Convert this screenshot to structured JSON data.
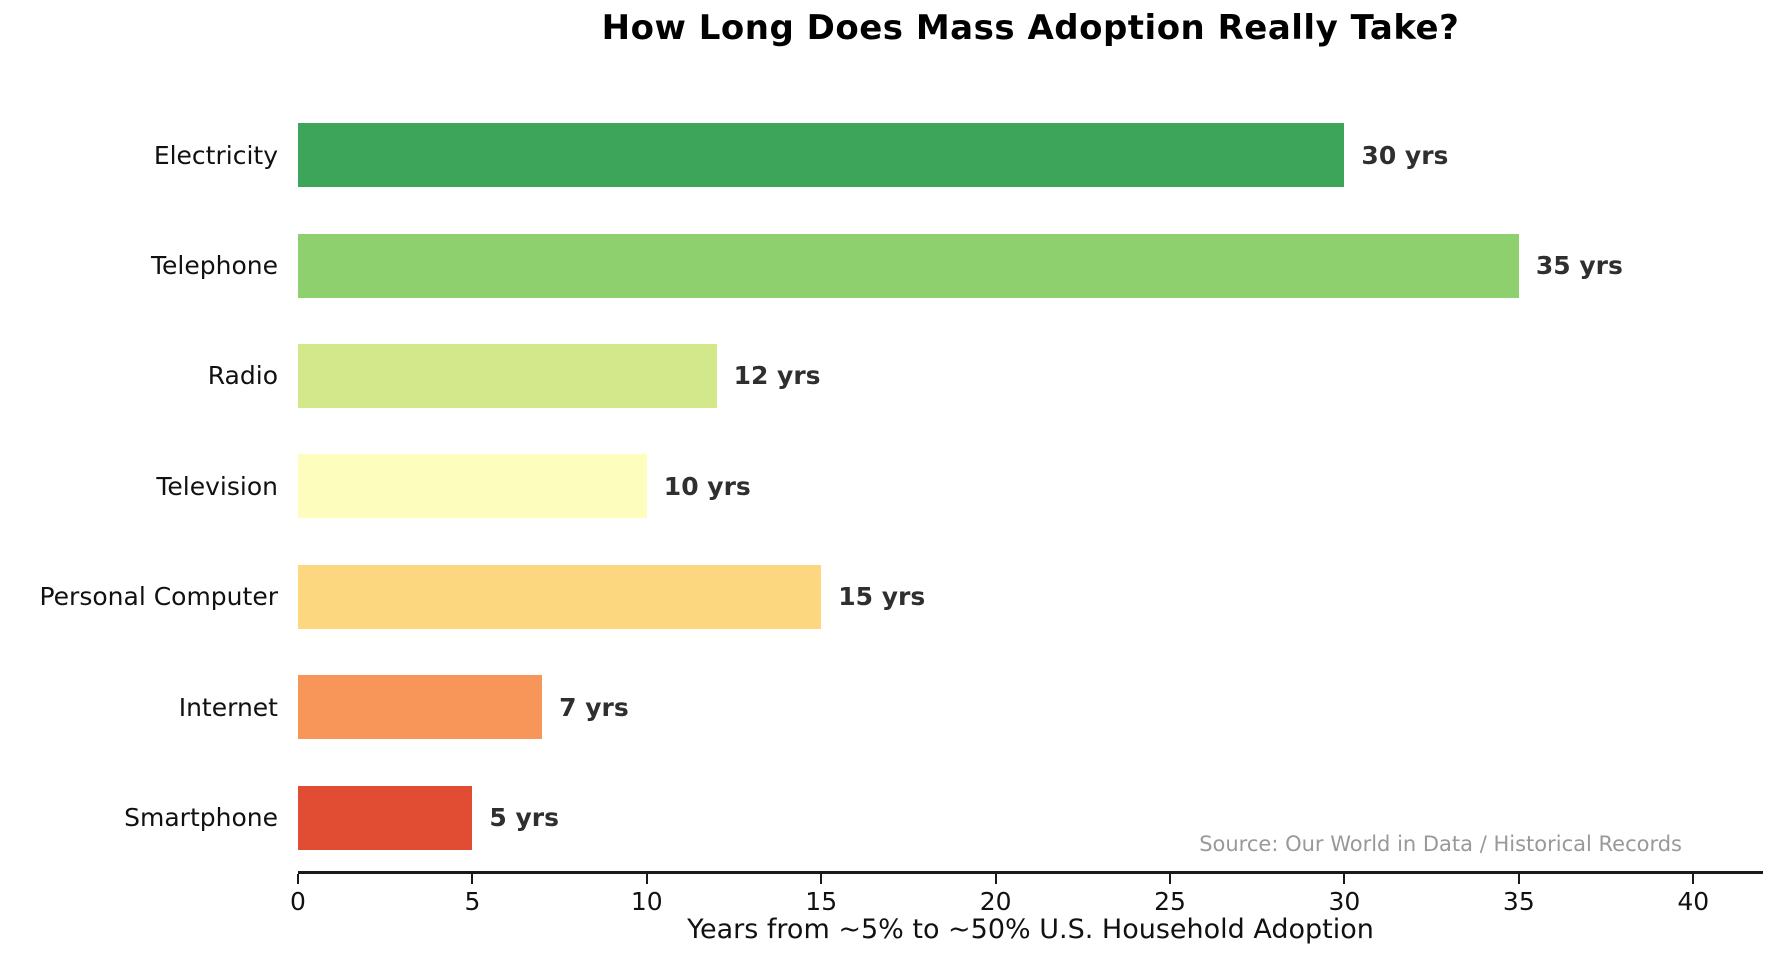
{
  "chart_data": {
    "type": "bar",
    "orientation": "horizontal",
    "title": "How Long Does Mass Adoption Really Take?",
    "xlabel": "Years from ~5% to ~50% U.S. Household Adoption",
    "source": "Source: Our World in Data / Historical Records",
    "categories": [
      "Electricity",
      "Telephone",
      "Radio",
      "Television",
      "Personal Computer",
      "Internet",
      "Smartphone"
    ],
    "values": [
      30,
      35,
      12,
      10,
      15,
      7,
      5
    ],
    "value_labels": [
      "30 yrs",
      "35 yrs",
      "12 yrs",
      "10 yrs",
      "15 yrs",
      "7 yrs",
      "5 yrs"
    ],
    "bar_colors": [
      "#3da55a",
      "#8ecf6e",
      "#d2e88a",
      "#fdfdbe",
      "#fdd780",
      "#f89659",
      "#e04d33"
    ],
    "xlim": [
      0,
      42
    ],
    "xticks": [
      0,
      5,
      10,
      15,
      20,
      25,
      30,
      35,
      40
    ],
    "grid": false,
    "legend": null,
    "colors": {
      "title": "#000000",
      "category_label": "#111111",
      "value_label": "#2f2f2f",
      "tick_label": "#111111",
      "axis": "#1a1a1a",
      "source": "#999999",
      "background": "#ffffff"
    }
  }
}
